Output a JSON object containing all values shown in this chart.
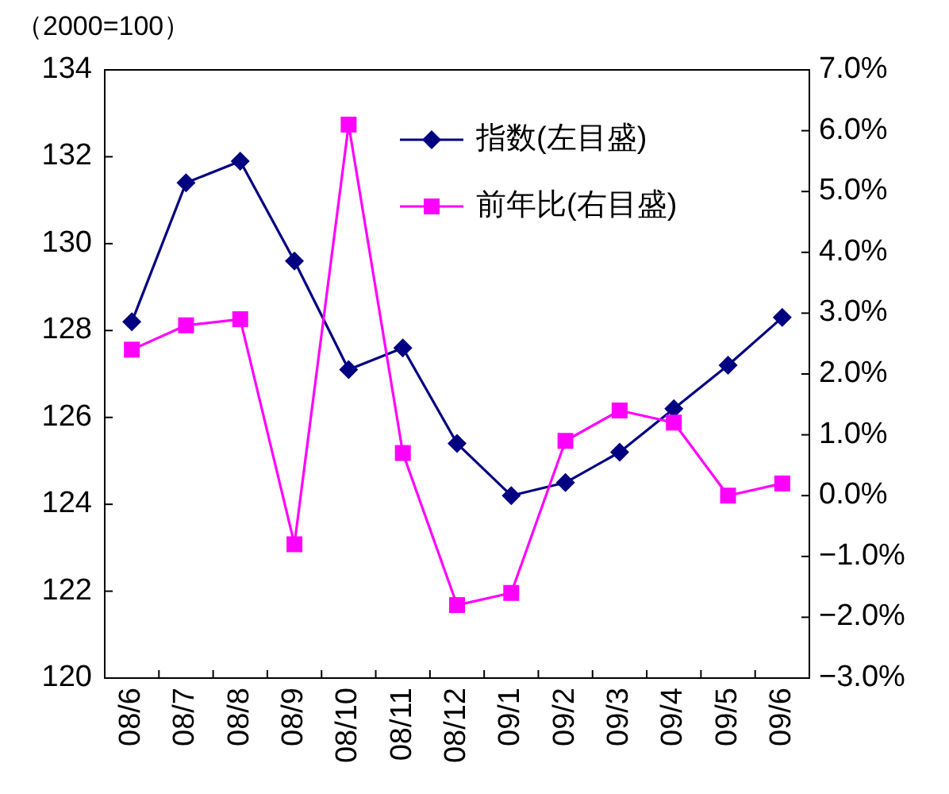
{
  "chart_data": {
    "type": "line",
    "categories": [
      "08/6",
      "08/7",
      "08/8",
      "08/9",
      "08/10",
      "08/11",
      "08/12",
      "09/1",
      "09/2",
      "09/3",
      "09/4",
      "09/5",
      "09/6"
    ],
    "series": [
      {
        "name": "指数(左目盛)",
        "color": "#000080",
        "marker": "diamond",
        "values": [
          128.2,
          131.4,
          131.9,
          129.6,
          127.1,
          127.6,
          125.4,
          124.2,
          124.5,
          125.2,
          126.2,
          127.2,
          128.3
        ]
      },
      {
        "name": "前年比(右目盛)",
        "color": "#ff00ff",
        "marker": "square",
        "axis": "y2",
        "values": [
          2.4,
          2.8,
          2.9,
          -0.8,
          6.1,
          0.7,
          -1.8,
          -1.6,
          0.9,
          1.4,
          1.2,
          0.0,
          0.2
        ]
      }
    ],
    "ylim": [
      120,
      134
    ],
    "yticks": [
      120,
      122,
      124,
      126,
      128,
      130,
      132,
      134
    ],
    "y2lim": [
      -3,
      7
    ],
    "y2ticks": [
      {
        "value": -3,
        "label": "−3.0%"
      },
      {
        "value": -2,
        "label": "−2.0%"
      },
      {
        "value": -1,
        "label": "−1.0%"
      },
      {
        "value": 0,
        "label": "0.0%"
      },
      {
        "value": 1,
        "label": "1.0%"
      },
      {
        "value": 2,
        "label": "2.0%"
      },
      {
        "value": 3,
        "label": "3.0%"
      },
      {
        "value": 4,
        "label": "4.0%"
      },
      {
        "value": 5,
        "label": "5.0%"
      },
      {
        "value": 6,
        "label": "6.0%"
      },
      {
        "value": 7,
        "label": "7.0%"
      }
    ],
    "annotations": [
      "（2000=100）"
    ],
    "legend": "top right"
  }
}
